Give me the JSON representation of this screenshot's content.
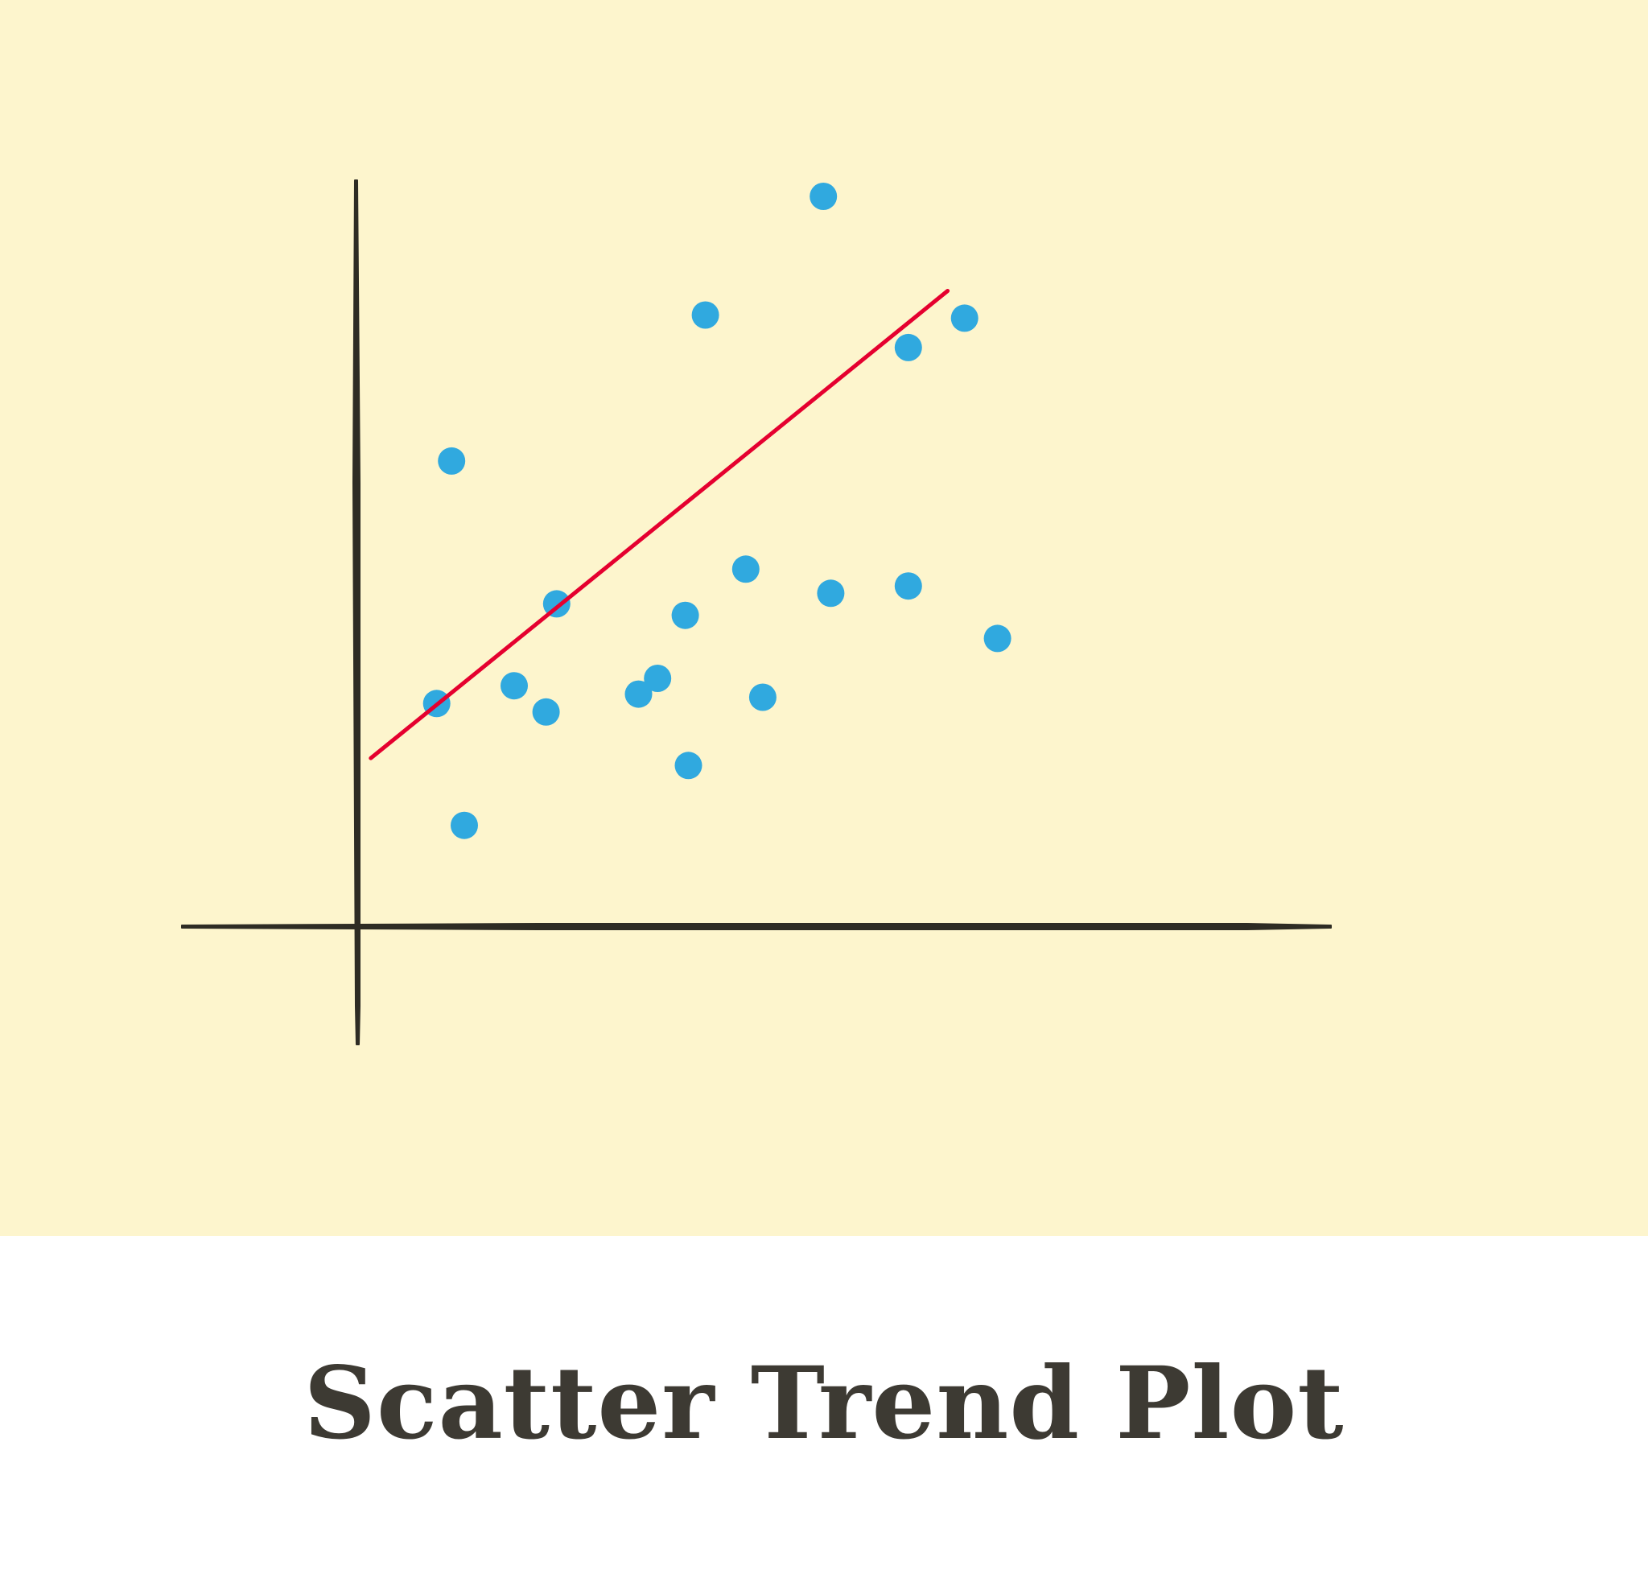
{
  "caption": {
    "title": "Scatter Trend Plot"
  },
  "colors": {
    "panel_background": "#fdf5cd",
    "caption_background": "#ffffff",
    "axis": "#2e2c24",
    "points": "#30a9df",
    "trend_line": "#e5002f",
    "title_text": "#3d3a33"
  },
  "chart_data": {
    "type": "scatter",
    "title": "",
    "xlabel": "",
    "ylabel": "",
    "xlim": [
      0,
      10
    ],
    "ylim": [
      0,
      10
    ],
    "grid": false,
    "legend": "none",
    "axis_ticks": "none",
    "series": [
      {
        "kind": "points",
        "x": [
          0.74,
          0.88,
          1.0,
          1.47,
          1.77,
          1.87,
          2.64,
          2.82,
          3.08,
          3.11,
          3.27,
          3.65,
          3.81,
          4.38,
          4.45,
          5.18,
          5.18,
          5.71,
          6.02
        ],
        "y": [
          2.12,
          4.43,
          0.96,
          2.29,
          2.04,
          3.07,
          2.21,
          2.36,
          2.96,
          1.53,
          5.82,
          3.4,
          2.18,
          6.95,
          3.17,
          5.51,
          3.24,
          5.79,
          2.74
        ]
      },
      {
        "kind": "trend-line",
        "x": [
          0.12,
          5.55
        ],
        "y": [
          1.6,
          6.05
        ]
      }
    ]
  }
}
